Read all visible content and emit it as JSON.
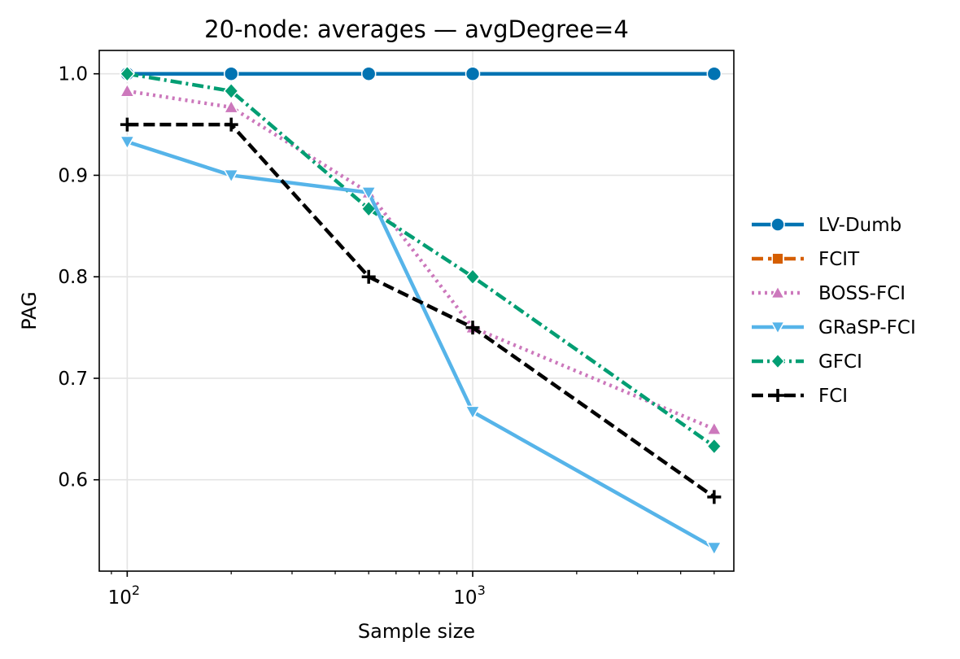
{
  "chart_data": {
    "type": "line",
    "title": "20-node: averages — avgDegree=4",
    "xlabel": "Sample size",
    "ylabel": "PAG",
    "xscale": "log",
    "x": [
      100,
      200,
      500,
      1000,
      5000
    ],
    "xlim": [
      83,
      5700
    ],
    "ylim": [
      0.51,
      1.023
    ],
    "grid": true,
    "legend_position": "right-outside",
    "yticks": [
      0.6,
      0.7,
      0.8,
      0.9,
      1.0
    ],
    "ytick_labels": [
      "0.6",
      "0.7",
      "0.8",
      "0.9",
      "1.0"
    ],
    "xticks": [
      {
        "value": 100,
        "base": "10",
        "exp": "2"
      },
      {
        "value": 1000,
        "base": "10",
        "exp": "3"
      }
    ],
    "series": [
      {
        "name": "LV-Dumb",
        "color": "#0173b2",
        "dash": "solid",
        "marker": "circle",
        "values": [
          1.0,
          1.0,
          1.0,
          1.0,
          1.0
        ]
      },
      {
        "name": "FCIT",
        "color": "#d55e00",
        "dash": "dashed",
        "marker": "square",
        "values": [
          1.0,
          1.0,
          1.0,
          1.0,
          1.0
        ]
      },
      {
        "name": "BOSS-FCI",
        "color": "#cc78bc",
        "dash": "dotted",
        "marker": "triangle-up",
        "values": [
          0.983,
          0.967,
          0.883,
          0.75,
          0.65
        ]
      },
      {
        "name": "GRaSP-FCI",
        "color": "#56b4e9",
        "dash": "solid",
        "marker": "triangle-down",
        "values": [
          0.933,
          0.9,
          0.883,
          0.667,
          0.533
        ]
      },
      {
        "name": "GFCI",
        "color": "#029e73",
        "dash": "dashdot",
        "marker": "diamond",
        "values": [
          1.0,
          0.983,
          0.867,
          0.8,
          0.633
        ]
      },
      {
        "name": "FCI",
        "color": "#000000",
        "dash": "dashed",
        "marker": "plus",
        "values": [
          0.95,
          0.95,
          0.8,
          0.75,
          0.583
        ]
      }
    ],
    "draw_order": [
      1,
      0,
      2,
      4,
      3,
      5
    ]
  }
}
